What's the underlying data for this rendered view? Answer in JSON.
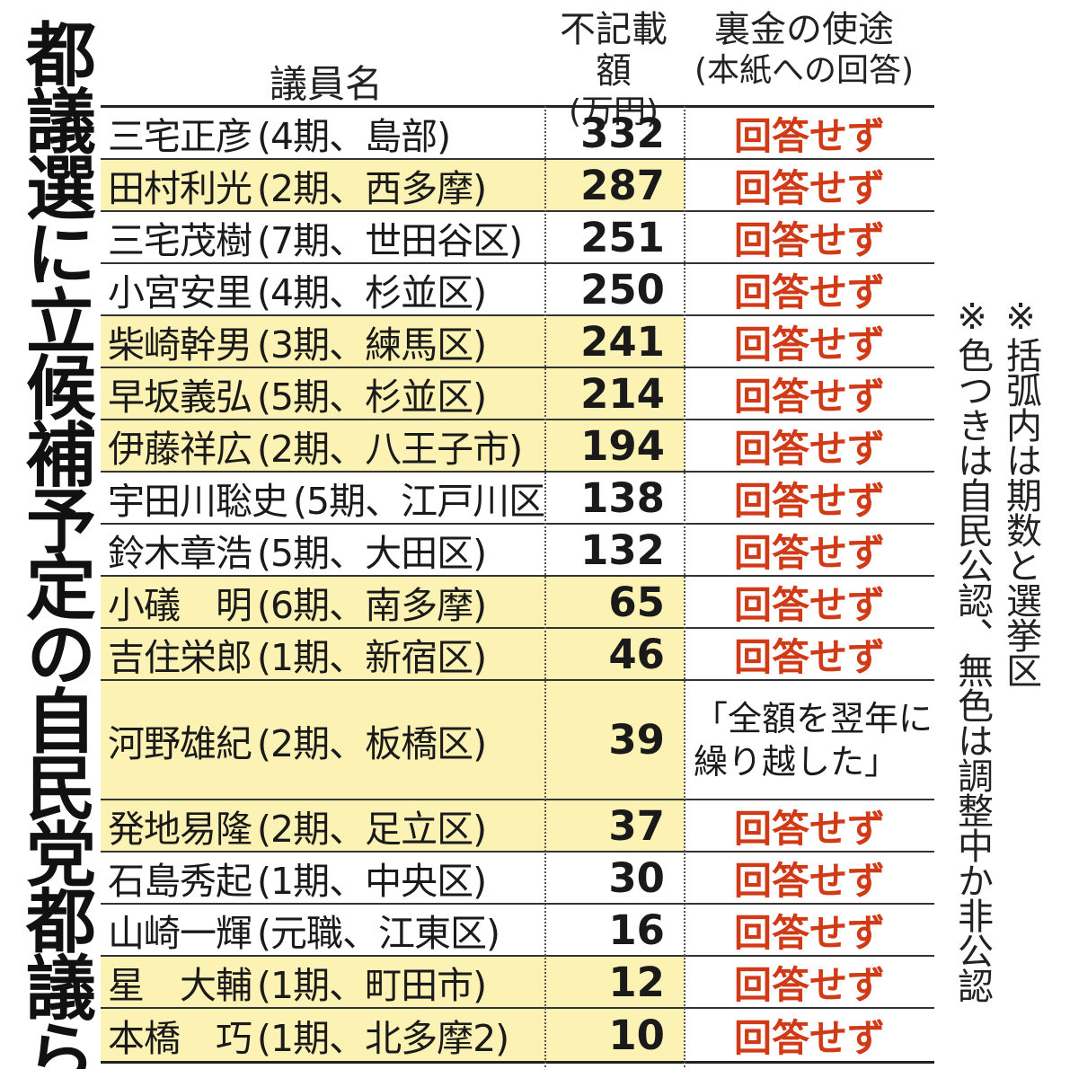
{
  "title": "都議選に立候補予定の自民党都議らの裏金使途",
  "headers": {
    "name": "議員名",
    "amount_line1": "不記載額",
    "amount_line2": "(万円)",
    "use_line1": "裏金の使途",
    "use_line2": "(本紙への回答)"
  },
  "rows": [
    {
      "name": "三宅正彦",
      "detail": "(4期、島部)",
      "amount": "332",
      "use": "回答せず",
      "highlight": false
    },
    {
      "name": "田村利光",
      "detail": "(2期、西多摩)",
      "amount": "287",
      "use": "回答せず",
      "highlight": true
    },
    {
      "name": "三宅茂樹",
      "detail": "(7期、世田谷区)",
      "amount": "251",
      "use": "回答せず",
      "highlight": false
    },
    {
      "name": "小宮安里",
      "detail": "(4期、杉並区)",
      "amount": "250",
      "use": "回答せず",
      "highlight": false
    },
    {
      "name": "柴崎幹男",
      "detail": "(3期、練馬区)",
      "amount": "241",
      "use": "回答せず",
      "highlight": true
    },
    {
      "name": "早坂義弘",
      "detail": "(5期、杉並区)",
      "amount": "214",
      "use": "回答せず",
      "highlight": true
    },
    {
      "name": "伊藤祥広",
      "detail": "(2期、八王子市)",
      "amount": "194",
      "use": "回答せず",
      "highlight": true
    },
    {
      "name": "宇田川聡史",
      "detail": "(5期、江戸川区)",
      "amount": "138",
      "use": "回答せず",
      "highlight": false
    },
    {
      "name": "鈴木章浩",
      "detail": "(5期、大田区)",
      "amount": "132",
      "use": "回答せず",
      "highlight": false
    },
    {
      "name": "小礒　明",
      "detail": "(6期、南多摩)",
      "amount": "65",
      "use": "回答せず",
      "highlight": true
    },
    {
      "name": "吉住栄郎",
      "detail": "(1期、新宿区)",
      "amount": "46",
      "use": "回答せず",
      "highlight": true
    },
    {
      "name": "河野雄紀",
      "detail": "(2期、板橋区)",
      "amount": "39",
      "use_line1": "「全額を翌年に",
      "use_line2": "繰り越した」",
      "highlight": true
    },
    {
      "name": "発地易隆",
      "detail": "(2期、足立区)",
      "amount": "37",
      "use": "回答せず",
      "highlight": true
    },
    {
      "name": "石島秀起",
      "detail": "(1期、中央区)",
      "amount": "30",
      "use": "回答せず",
      "highlight": false
    },
    {
      "name": "山崎一輝",
      "detail": "(元職、江東区)",
      "amount": "16",
      "use": "回答せず",
      "highlight": false
    },
    {
      "name": "星　大輔",
      "detail": "(1期、町田市)",
      "amount": "12",
      "use": "回答せず",
      "highlight": true
    },
    {
      "name": "本橋　巧",
      "detail": "(1期、北多摩2)",
      "amount": "10",
      "use": "回答せず",
      "highlight": true
    }
  ],
  "notes": [
    "※括弧内は期数と選挙区",
    "※色つきは自民公認、無色は調整中か非公認"
  ],
  "colors": {
    "highlight": "#fcf2b4",
    "no_answer": "#d03a16"
  }
}
